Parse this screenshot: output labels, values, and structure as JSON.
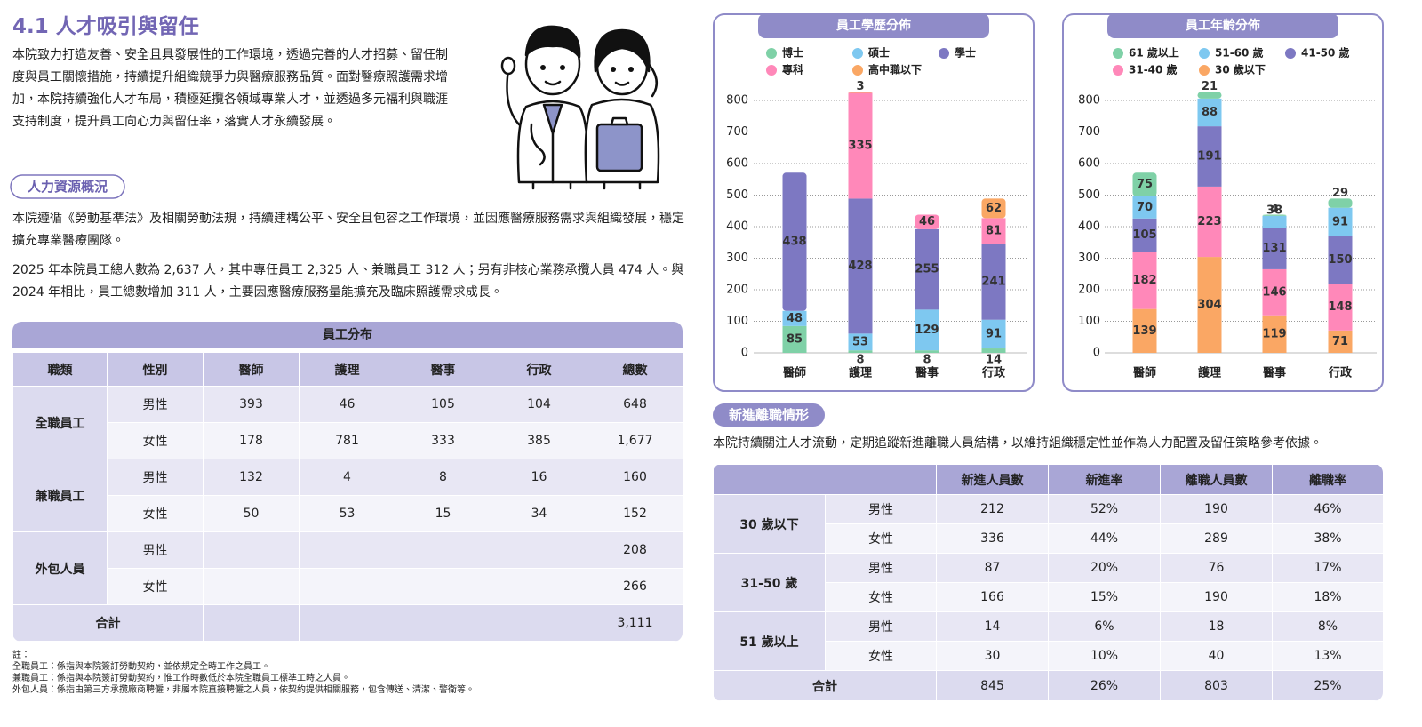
{
  "title": "4.1 人才吸引與留任",
  "intro": "本院致力打造友善、安全且具發展性的工作環境，透過完善的人才招募、留任制度與員工關懷措施，持續提升組織競爭力與醫療服務品質。面對醫療照護需求增加，本院持續強化人才布局，積極延攬各領域專業人才，並透過多元福利與職涯支持制度，提升員工向心力與留任率，落實人才永續發展。",
  "section1": {
    "heading": "人力資源概況",
    "paragraphs": [
      "本院遵循《勞動基準法》及相關勞動法規，持續建構公平、安全且包容之工作環境，並因應醫療服務需求與組織發展，穩定擴充專業醫療團隊。",
      "2025 年本院員工總人數為 2,637 人，其中專任員工 2,325 人、兼職員工 312 人；另有非核心業務承攬人員 474 人。與 2024 年相比，員工總數增加 311 人，主要因應醫療服務量能擴充及臨床照護需求成長。"
    ]
  },
  "employee_table": {
    "title": "員工分布",
    "headers": [
      "職類",
      "性別",
      "醫師",
      "護理",
      "醫事",
      "行政",
      "總數"
    ],
    "groups": [
      {
        "name": "全職員工",
        "rows": [
          {
            "gender": "男性",
            "cells": [
              "393",
              "46",
              "105",
              "104",
              "648"
            ]
          },
          {
            "gender": "女性",
            "cells": [
              "178",
              "781",
              "333",
              "385",
              "1,677"
            ]
          }
        ]
      },
      {
        "name": "兼職員工",
        "rows": [
          {
            "gender": "男性",
            "cells": [
              "132",
              "4",
              "8",
              "16",
              "160"
            ]
          },
          {
            "gender": "女性",
            "cells": [
              "50",
              "53",
              "15",
              "34",
              "152"
            ]
          }
        ]
      },
      {
        "name": "外包人員",
        "rows": [
          {
            "gender": "男性",
            "cells": [
              null,
              null,
              null,
              null,
              "208"
            ]
          },
          {
            "gender": "女性",
            "cells": [
              null,
              null,
              null,
              null,
              "266"
            ]
          }
        ]
      }
    ],
    "total": {
      "label": "合計",
      "cells": [
        null,
        null,
        null,
        null,
        "3,111"
      ]
    }
  },
  "notes": {
    "label": "註：",
    "items": [
      "全職員工：係指與本院簽訂勞動契約，並依規定全時工作之員工。",
      "兼職員工：係指與本院簽訂勞動契約，惟工作時數低於本院全職員工標準工時之人員。",
      "外包人員：係指由第三方承攬廠商聘僱，非屬本院直接聘僱之人員，依契約提供相關服務，包含傳送、清潔、警衛等。"
    ]
  },
  "chart_data": [
    {
      "type": "bar",
      "stacked": true,
      "title": "員工學歷分佈",
      "categories": [
        "醫師",
        "護理",
        "醫事",
        "行政"
      ],
      "series": [
        {
          "name": "博士",
          "color": "#7fd1a7",
          "values": [
            85,
            8,
            8,
            14
          ]
        },
        {
          "name": "碩士",
          "color": "#7ec8f0",
          "values": [
            48,
            53,
            129,
            91
          ]
        },
        {
          "name": "學士",
          "color": "#7d78c2",
          "values": [
            438,
            428,
            255,
            241
          ]
        },
        {
          "name": "專科",
          "color": "#ff88b9",
          "values": [
            null,
            335,
            46,
            81
          ]
        },
        {
          "name": "高中職以下",
          "color": "#faa764",
          "values": [
            null,
            3,
            null,
            62
          ]
        }
      ],
      "ylim": [
        0,
        800
      ],
      "yticks": [
        0,
        100,
        200,
        300,
        400,
        500,
        600,
        700,
        800
      ],
      "grid": true
    },
    {
      "type": "bar",
      "stacked": true,
      "stack_order": "reverse",
      "title": "員工年齡分佈",
      "categories": [
        "醫師",
        "護理",
        "醫事",
        "行政"
      ],
      "series": [
        {
          "name": "61 歲以上",
          "color": "#7fd1a7",
          "values": [
            75,
            21,
            4,
            29
          ]
        },
        {
          "name": "51-60 歲",
          "color": "#7ec8f0",
          "values": [
            70,
            88,
            38,
            91
          ]
        },
        {
          "name": "41-50 歲",
          "color": "#7d78c2",
          "values": [
            105,
            191,
            131,
            150
          ]
        },
        {
          "name": "31-40 歲",
          "color": "#ff88b9",
          "values": [
            182,
            223,
            146,
            148
          ]
        },
        {
          "name": "30 歲以下",
          "color": "#faa764",
          "values": [
            139,
            304,
            119,
            71
          ]
        }
      ],
      "ylim": [
        0,
        800
      ],
      "yticks": [
        0,
        100,
        200,
        300,
        400,
        500,
        600,
        700,
        800
      ],
      "grid": true
    }
  ],
  "section2": {
    "heading": "新進離職情形",
    "paragraph": "本院持續關注人才流動，定期追蹤新進離職人員結構，以維持組織穩定性並作為人力配置及留任策略參考依據。"
  },
  "turnover_table": {
    "headers": [
      "新進人員數",
      "新進率",
      "離職人員數",
      "離職率"
    ],
    "groups": [
      {
        "name": "30 歲以下",
        "rows": [
          {
            "gender": "男性",
            "cells": [
              "212",
              "52%",
              "190",
              "46%"
            ]
          },
          {
            "gender": "女性",
            "cells": [
              "336",
              "44%",
              "289",
              "38%"
            ]
          }
        ]
      },
      {
        "name": "31-50 歲",
        "rows": [
          {
            "gender": "男性",
            "cells": [
              "87",
              "20%",
              "76",
              "17%"
            ]
          },
          {
            "gender": "女性",
            "cells": [
              "166",
              "15%",
              "190",
              "18%"
            ]
          }
        ]
      },
      {
        "name": "51 歲以上",
        "rows": [
          {
            "gender": "男性",
            "cells": [
              "14",
              "6%",
              "18",
              "8%"
            ]
          },
          {
            "gender": "女性",
            "cells": [
              "30",
              "10%",
              "40",
              "13%"
            ]
          }
        ]
      }
    ],
    "total": {
      "label": "合計",
      "cells": [
        "845",
        "26%",
        "803",
        "25%"
      ]
    }
  }
}
